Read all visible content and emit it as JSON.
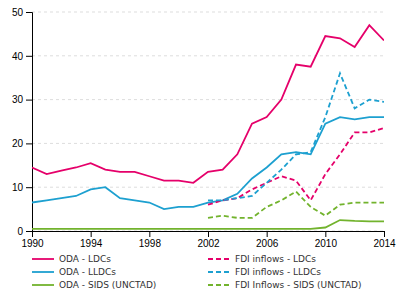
{
  "chart_data": {
    "type": "line",
    "x": [
      1990,
      1991,
      1992,
      1993,
      1994,
      1995,
      1996,
      1997,
      1998,
      1999,
      2000,
      2001,
      2002,
      2003,
      2004,
      2005,
      2006,
      2007,
      2008,
      2009,
      2010,
      2011,
      2012,
      2013,
      2014
    ],
    "series": [
      {
        "name": "ODA - LDCs",
        "color": "#e5006a",
        "line_style": "solid",
        "values": [
          14.5,
          13.0,
          13.8,
          14.5,
          15.5,
          14.0,
          13.5,
          13.5,
          12.5,
          11.5,
          11.5,
          11.0,
          13.5,
          14.0,
          17.5,
          24.5,
          26.0,
          30.0,
          38.0,
          37.5,
          44.5,
          44.0,
          42.0,
          47.0,
          43.5
        ]
      },
      {
        "name": "ODA - LLDCs",
        "color": "#1da0d0",
        "line_style": "solid",
        "values": [
          6.5,
          7.0,
          7.5,
          8.0,
          9.5,
          10.0,
          7.5,
          7.0,
          6.5,
          5.0,
          5.5,
          5.5,
          6.5,
          7.0,
          8.5,
          12.0,
          14.5,
          17.5,
          18.0,
          17.5,
          24.5,
          26.0,
          25.5,
          26.0,
          26.0
        ]
      },
      {
        "name": "ODA - SIDS (UNCTAD)",
        "color": "#72b32d",
        "line_style": "solid",
        "values": [
          0.5,
          0.5,
          0.5,
          0.5,
          0.5,
          0.5,
          0.5,
          0.5,
          0.5,
          0.5,
          0.5,
          0.5,
          0.5,
          0.5,
          0.5,
          0.5,
          0.5,
          0.5,
          0.5,
          0.5,
          0.8,
          2.5,
          2.3,
          2.2,
          2.2
        ]
      },
      {
        "name": "FDI inflows - LDCs",
        "color": "#e5006a",
        "line_style": "dashed",
        "values": [
          null,
          null,
          null,
          null,
          null,
          null,
          null,
          null,
          null,
          null,
          null,
          null,
          6.0,
          7.0,
          7.5,
          9.5,
          11.0,
          12.5,
          11.5,
          7.0,
          13.0,
          17.5,
          22.5,
          22.5,
          23.5
        ]
      },
      {
        "name": "FDI inflows - LLDCs",
        "color": "#1da0d0",
        "line_style": "dashed",
        "values": [
          null,
          null,
          null,
          null,
          null,
          null,
          null,
          null,
          null,
          null,
          null,
          null,
          7.0,
          7.0,
          7.5,
          8.0,
          11.0,
          14.0,
          17.5,
          18.0,
          26.0,
          36.0,
          28.0,
          30.0,
          29.5
        ]
      },
      {
        "name": "FDI Inflows - SIDS (UNCTAD)",
        "color": "#72b32d",
        "line_style": "dashed",
        "values": [
          null,
          null,
          null,
          null,
          null,
          null,
          null,
          null,
          null,
          null,
          null,
          null,
          3.0,
          3.5,
          3.0,
          3.0,
          5.5,
          7.0,
          9.0,
          5.5,
          3.5,
          6.0,
          6.5,
          6.5,
          6.5
        ]
      }
    ],
    "xlim": [
      1990,
      2014
    ],
    "xticks": [
      1990,
      1994,
      1998,
      2002,
      2006,
      2010,
      2014
    ],
    "ylim": [
      0,
      50
    ],
    "yticks": [
      0,
      10,
      20,
      30,
      40,
      50
    ],
    "grid": true,
    "legend": "bottom"
  }
}
